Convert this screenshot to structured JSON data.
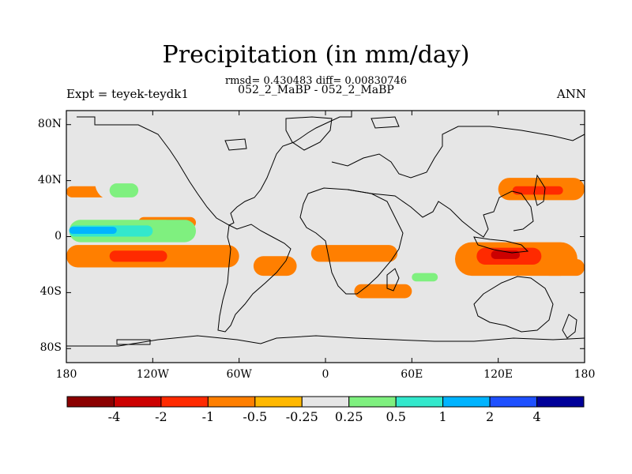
{
  "header": {
    "title": "Precipitation (in mm/day)",
    "stats": "rmsd= 0.430483 diff= 0.00830746",
    "cases": "052_2_MaBP - 052_2_MaBP",
    "experiment": "Expt = teyek-teydk1",
    "season": "ANN"
  },
  "chart_data": {
    "type": "heatmap",
    "title": "Precipitation (in mm/day)",
    "xlabel": "",
    "ylabel": "",
    "xlim": [
      -180,
      180
    ],
    "ylim": [
      -90,
      90
    ],
    "x_ticks": [
      "180",
      "120W",
      "60W",
      "0",
      "60E",
      "120E",
      "180"
    ],
    "x_tick_values": [
      -180,
      -120,
      -60,
      0,
      60,
      120,
      180
    ],
    "y_ticks": [
      "80N",
      "40N",
      "0",
      "40S",
      "80S"
    ],
    "y_tick_values": [
      80,
      40,
      0,
      -40,
      -80
    ],
    "colorbar": {
      "levels": [
        "-4",
        "-2",
        "-1",
        "-0.5",
        "-0.25",
        "0.25",
        "0.5",
        "1",
        "2",
        "4"
      ],
      "colors": [
        "#8b0000",
        "#cc0000",
        "#ff2a00",
        "#ff7f00",
        "#ffb800",
        "#e6e6e6",
        "#7ff07f",
        "#33e8cc",
        "#00b4ff",
        "#1e50ff",
        "#000099"
      ]
    },
    "regions": [
      {
        "lon": [
          -180,
          -60
        ],
        "lat": [
          -22,
          -6
        ],
        "level": -0.5
      },
      {
        "lon": [
          -150,
          -110
        ],
        "lat": [
          -18,
          -10
        ],
        "level": -1
      },
      {
        "lon": [
          -130,
          -90
        ],
        "lat": [
          6,
          14
        ],
        "level": -0.5
      },
      {
        "lon": [
          -112,
          -96
        ],
        "lat": [
          8,
          12
        ],
        "level": -1
      },
      {
        "lon": [
          -180,
          -150
        ],
        "lat": [
          28,
          36
        ],
        "level": -0.5
      },
      {
        "lon": [
          -178,
          -90
        ],
        "lat": [
          -4,
          12
        ],
        "level": 0.5
      },
      {
        "lon": [
          -178,
          -120
        ],
        "lat": [
          0,
          8
        ],
        "level": 1
      },
      {
        "lon": [
          -178,
          -145
        ],
        "lat": [
          2,
          7
        ],
        "level": 2
      },
      {
        "lon": [
          -160,
          -110
        ],
        "lat": [
          26,
          50
        ],
        "level": 0.25
      },
      {
        "lon": [
          -150,
          -130
        ],
        "lat": [
          28,
          38
        ],
        "level": 0.5
      },
      {
        "lon": [
          -90,
          -40
        ],
        "lat": [
          30,
          42
        ],
        "level": 0.25
      },
      {
        "lon": [
          -80,
          -50
        ],
        "lat": [
          42,
          48
        ],
        "level": 0.25
      },
      {
        "lon": [
          -35,
          10
        ],
        "lat": [
          50,
          62
        ],
        "level": 0.25
      },
      {
        "lon": [
          -50,
          -20
        ],
        "lat": [
          -28,
          -14
        ],
        "level": -0.5
      },
      {
        "lon": [
          -10,
          50
        ],
        "lat": [
          -18,
          -6
        ],
        "level": -0.5
      },
      {
        "lon": [
          55,
          90
        ],
        "lat": [
          -36,
          -22
        ],
        "level": 0.25
      },
      {
        "lon": [
          60,
          78
        ],
        "lat": [
          -32,
          -26
        ],
        "level": 0.5
      },
      {
        "lon": [
          90,
          175
        ],
        "lat": [
          -28,
          -4
        ],
        "level": -0.5
      },
      {
        "lon": [
          105,
          150
        ],
        "lat": [
          -20,
          -8
        ],
        "level": -1
      },
      {
        "lon": [
          115,
          135
        ],
        "lat": [
          -16,
          -10
        ],
        "level": -2
      },
      {
        "lon": [
          150,
          180
        ],
        "lat": [
          -28,
          -16
        ],
        "level": -0.5
      },
      {
        "lon": [
          120,
          180
        ],
        "lat": [
          26,
          42
        ],
        "level": -0.5
      },
      {
        "lon": [
          130,
          165
        ],
        "lat": [
          30,
          36
        ],
        "level": -1
      },
      {
        "lon": [
          125,
          180
        ],
        "lat": [
          8,
          22
        ],
        "level": 0.25
      },
      {
        "lon": [
          -60,
          -20
        ],
        "lat": [
          -56,
          -44
        ],
        "level": 0.25
      },
      {
        "lon": [
          -20,
          30
        ],
        "lat": [
          -44,
          -38
        ],
        "level": 0.25
      },
      {
        "lon": [
          90,
          150
        ],
        "lat": [
          -54,
          -44
        ],
        "level": 0.25
      },
      {
        "lon": [
          -140,
          -90
        ],
        "lat": [
          -38,
          -28
        ],
        "level": 0.25
      },
      {
        "lon": [
          20,
          60
        ],
        "lat": [
          -44,
          -34
        ],
        "level": -0.5
      }
    ]
  }
}
